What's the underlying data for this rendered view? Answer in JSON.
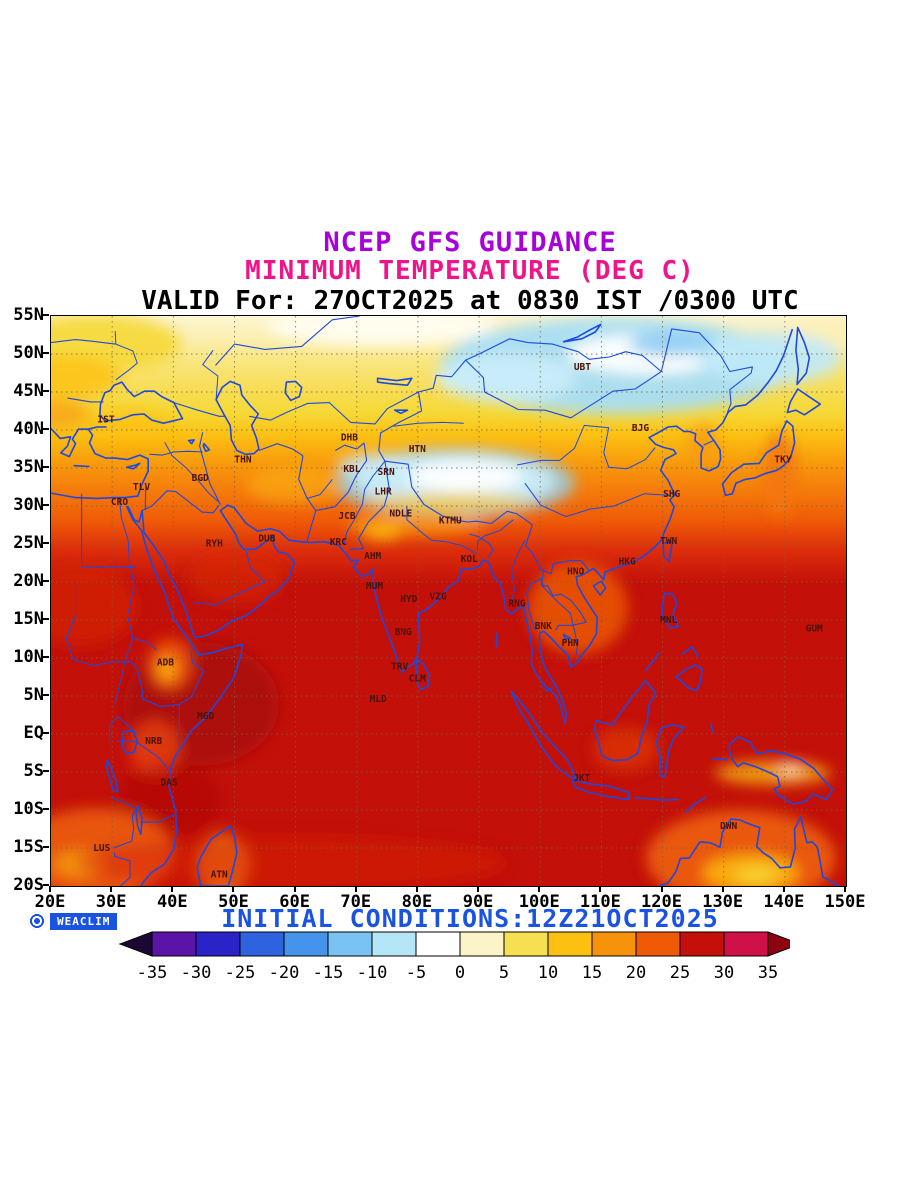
{
  "header": {
    "line1": "NCEP GFS GUIDANCE",
    "line2": "MINIMUM TEMPERATURE (DEG C)",
    "line3": "VALID For: 27OCT2025 at 0830 IST /0300 UTC"
  },
  "footer": {
    "logo_text": "WEACLIM",
    "initial_conditions": "INITIAL CONDITIONS:12Z21OCT2025"
  },
  "map_extent": {
    "lon_min": 20,
    "lon_max": 150,
    "lat_min": -20,
    "lat_max": 55
  },
  "axes": {
    "lat": [
      {
        "label": "55N",
        "value": 55
      },
      {
        "label": "50N",
        "value": 50
      },
      {
        "label": "45N",
        "value": 45
      },
      {
        "label": "40N",
        "value": 40
      },
      {
        "label": "35N",
        "value": 35
      },
      {
        "label": "30N",
        "value": 30
      },
      {
        "label": "25N",
        "value": 25
      },
      {
        "label": "20N",
        "value": 20
      },
      {
        "label": "15N",
        "value": 15
      },
      {
        "label": "10N",
        "value": 10
      },
      {
        "label": "5N",
        "value": 5
      },
      {
        "label": "EQ",
        "value": 0
      },
      {
        "label": "5S",
        "value": -5
      },
      {
        "label": "10S",
        "value": -10
      },
      {
        "label": "15S",
        "value": -15
      },
      {
        "label": "20S",
        "value": -20
      }
    ],
    "lon": [
      {
        "label": "20E",
        "value": 20
      },
      {
        "label": "30E",
        "value": 30
      },
      {
        "label": "40E",
        "value": 40
      },
      {
        "label": "50E",
        "value": 50
      },
      {
        "label": "60E",
        "value": 60
      },
      {
        "label": "70E",
        "value": 70
      },
      {
        "label": "80E",
        "value": 80
      },
      {
        "label": "90E",
        "value": 90
      },
      {
        "label": "100E",
        "value": 100
      },
      {
        "label": "110E",
        "value": 110
      },
      {
        "label": "120E",
        "value": 120
      },
      {
        "label": "130E",
        "value": 130
      },
      {
        "label": "140E",
        "value": 140
      },
      {
        "label": "150E",
        "value": 150
      }
    ]
  },
  "cities": [
    {
      "code": "IST",
      "lon": 29.0,
      "lat": 41.0
    },
    {
      "code": "TLV",
      "lon": 34.8,
      "lat": 32.1
    },
    {
      "code": "CRO",
      "lon": 31.2,
      "lat": 30.1
    },
    {
      "code": "BGD",
      "lon": 44.4,
      "lat": 33.3
    },
    {
      "code": "THN",
      "lon": 51.4,
      "lat": 35.7
    },
    {
      "code": "DHB",
      "lon": 68.8,
      "lat": 38.6
    },
    {
      "code": "KBL",
      "lon": 69.2,
      "lat": 34.5
    },
    {
      "code": "SRN",
      "lon": 74.8,
      "lat": 34.1
    },
    {
      "code": "LHR",
      "lon": 74.3,
      "lat": 31.5
    },
    {
      "code": "HTN",
      "lon": 79.9,
      "lat": 37.1
    },
    {
      "code": "UBT",
      "lon": 106.9,
      "lat": 47.9
    },
    {
      "code": "BJG",
      "lon": 116.4,
      "lat": 39.9
    },
    {
      "code": "TKY",
      "lon": 139.7,
      "lat": 35.7
    },
    {
      "code": "SHG",
      "lon": 121.5,
      "lat": 31.2
    },
    {
      "code": "TWN",
      "lon": 121.0,
      "lat": 25.0
    },
    {
      "code": "HKG",
      "lon": 114.2,
      "lat": 22.3
    },
    {
      "code": "HNO",
      "lon": 105.8,
      "lat": 21.0
    },
    {
      "code": "MNL",
      "lon": 121.0,
      "lat": 14.6
    },
    {
      "code": "GUM",
      "lon": 144.8,
      "lat": 13.5
    },
    {
      "code": "RYH",
      "lon": 46.7,
      "lat": 24.7
    },
    {
      "code": "DUB",
      "lon": 55.3,
      "lat": 25.3
    },
    {
      "code": "KRC",
      "lon": 67.0,
      "lat": 24.9
    },
    {
      "code": "JCB",
      "lon": 68.4,
      "lat": 28.3
    },
    {
      "code": "NDLE",
      "lon": 77.2,
      "lat": 28.6
    },
    {
      "code": "KTMU",
      "lon": 85.3,
      "lat": 27.7
    },
    {
      "code": "AHM",
      "lon": 72.6,
      "lat": 23.0
    },
    {
      "code": "MUM",
      "lon": 72.9,
      "lat": 19.1
    },
    {
      "code": "HYD",
      "lon": 78.5,
      "lat": 17.4
    },
    {
      "code": "VZG",
      "lon": 83.3,
      "lat": 17.7
    },
    {
      "code": "KOL",
      "lon": 88.4,
      "lat": 22.6
    },
    {
      "code": "RNG",
      "lon": 96.2,
      "lat": 16.8
    },
    {
      "code": "BNK",
      "lon": 100.5,
      "lat": 13.8
    },
    {
      "code": "PHN",
      "lon": 104.9,
      "lat": 11.6
    },
    {
      "code": "BNG",
      "lon": 77.6,
      "lat": 13.0
    },
    {
      "code": "TRV",
      "lon": 77.0,
      "lat": 8.5
    },
    {
      "code": "CLM",
      "lon": 79.9,
      "lat": 6.9
    },
    {
      "code": "MLD",
      "lon": 73.5,
      "lat": 4.2
    },
    {
      "code": "ADB",
      "lon": 38.7,
      "lat": 9.0
    },
    {
      "code": "MGD",
      "lon": 45.3,
      "lat": 2.0
    },
    {
      "code": "NRB",
      "lon": 36.8,
      "lat": -1.3
    },
    {
      "code": "DAS",
      "lon": 39.3,
      "lat": -6.8
    },
    {
      "code": "LUS",
      "lon": 28.3,
      "lat": -15.4
    },
    {
      "code": "ATN",
      "lon": 47.5,
      "lat": -18.9
    },
    {
      "code": "JKT",
      "lon": 106.8,
      "lat": -6.2
    },
    {
      "code": "DWN",
      "lon": 130.8,
      "lat": -12.5
    }
  ],
  "colorbar": {
    "tick_labels": [
      "-35",
      "-30",
      "-25",
      "-20",
      "-15",
      "-10",
      "-5",
      "0",
      "5",
      "10",
      "15",
      "20",
      "25",
      "30",
      "35"
    ],
    "segment_colors": [
      "#5a15a8",
      "#2a24c8",
      "#2f62de",
      "#4693ec",
      "#79c2f2",
      "#b5e6f8",
      "#ffffff",
      "#fdf3c9",
      "#f7df52",
      "#fdc011",
      "#f7930b",
      "#ef5a07",
      "#c41009",
      "#d01048"
    ],
    "arrow_left_color": "#1b0733",
    "arrow_right_color": "#8c0012"
  },
  "colors": {
    "title1": "#a800d8",
    "title2": "#f0148c",
    "valid_text": "#000000",
    "initial_conditions": "#1a53e0",
    "coastline": "#1d49e0",
    "graticule": "#7a6240",
    "city_label": "#4a1206",
    "axis_label": "#000000",
    "map_border": "#000000"
  }
}
